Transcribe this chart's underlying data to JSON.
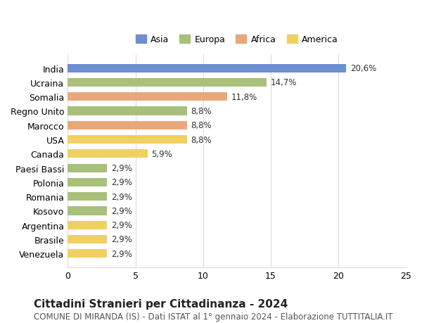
{
  "countries": [
    "India",
    "Ucraina",
    "Somalia",
    "Regno Unito",
    "Marocco",
    "USA",
    "Canada",
    "Paesi Bassi",
    "Polonia",
    "Romania",
    "Kosovo",
    "Argentina",
    "Brasile",
    "Venezuela"
  ],
  "values": [
    20.6,
    14.7,
    11.8,
    8.8,
    8.8,
    8.8,
    5.9,
    2.9,
    2.9,
    2.9,
    2.9,
    2.9,
    2.9,
    2.9
  ],
  "continents": [
    "Asia",
    "Europa",
    "Africa",
    "Europa",
    "Africa",
    "America",
    "America",
    "Europa",
    "Europa",
    "Europa",
    "Europa",
    "America",
    "America",
    "America"
  ],
  "colors": {
    "Asia": "#6b8fcf",
    "Europa": "#a8c07a",
    "Africa": "#e8a87c",
    "America": "#f0d060"
  },
  "legend_order": [
    "Asia",
    "Europa",
    "Africa",
    "America"
  ],
  "xlim": [
    0,
    25
  ],
  "xticks": [
    0,
    5,
    10,
    15,
    20,
    25
  ],
  "title": "Cittadini Stranieri per Cittadinanza - 2024",
  "subtitle": "COMUNE DI MIRANDA (IS) - Dati ISTAT al 1° gennaio 2024 - Elaborazione TUTTITALIA.IT",
  "bg_color": "#ffffff",
  "grid_color": "#dddddd",
  "bar_height": 0.6,
  "label_fontsize": 8.5,
  "title_fontsize": 11,
  "subtitle_fontsize": 8.5,
  "legend_fontsize": 9,
  "axis_label_fontsize": 9
}
